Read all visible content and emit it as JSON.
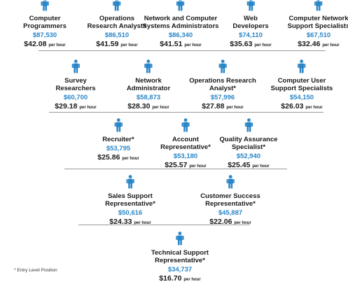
{
  "tiers": [
    {
      "jobs": [
        {
          "title": [
            "Computer",
            "Programmers"
          ],
          "salary": "$87,530",
          "hourly": "$42.08",
          "per": "per hour"
        },
        {
          "title": [
            "Operations",
            "Research Analysts"
          ],
          "salary": "$86,510",
          "hourly": "$41.59",
          "per": "per hour"
        },
        {
          "title": [
            "Network and Computer",
            "Systems Administrators"
          ],
          "salary": "$86,340",
          "hourly": "$41.51",
          "per": "per hour"
        },
        {
          "title": [
            "Web",
            "Developers"
          ],
          "salary": "$74,110",
          "hourly": "$35.63",
          "per": "per hour"
        },
        {
          "title": [
            "Computer Network",
            "Support Specialists"
          ],
          "salary": "$67,510",
          "hourly": "$32.46",
          "per": "per hour"
        }
      ]
    },
    {
      "jobs": [
        {
          "title": [
            "Survey",
            "Researchers"
          ],
          "salary": "$60,700",
          "hourly": "$29.18",
          "per": "per hour"
        },
        {
          "title": [
            "Network",
            "Administrator"
          ],
          "salary": "$58,873",
          "hourly": "$28.30",
          "per": "per hour"
        },
        {
          "title": [
            "Operations Research",
            "Analyst*"
          ],
          "salary": "$57,996",
          "hourly": "$27.88",
          "per": "per hour"
        },
        {
          "title": [
            "Computer User",
            "Support Specialists"
          ],
          "salary": "$54,150",
          "hourly": "$26.03",
          "per": "per hour"
        }
      ]
    },
    {
      "jobs": [
        {
          "title": [
            "Recruiter*"
          ],
          "salary": "$53,795",
          "hourly": "$25.86",
          "per": "per hour"
        },
        {
          "title": [
            "Account",
            "Representative*"
          ],
          "salary": "$53,180",
          "hourly": "$25.57",
          "per": "per hour"
        },
        {
          "title": [
            "Quality Assurance",
            "Specialist*"
          ],
          "salary": "$52,940",
          "hourly": "$25.45",
          "per": "per hour"
        }
      ]
    },
    {
      "jobs": [
        {
          "title": [
            "Sales Support",
            "Representative*"
          ],
          "salary": "$50,616",
          "hourly": "$24.33",
          "per": "per hour"
        },
        {
          "title": [
            "Customer Success",
            "Representative*"
          ],
          "salary": "$45,887",
          "hourly": "$22.06",
          "per": "per hour"
        }
      ]
    },
    {
      "jobs": [
        {
          "title": [
            "Technical Support",
            "Representative*"
          ],
          "salary": "$34,737",
          "hourly": "$16.70",
          "per": "per hour"
        }
      ]
    }
  ],
  "footnote": "* Entry Level Position",
  "colors": {
    "icon": "#2b86c8",
    "salary": "#2b86c8",
    "divider": "#9a9a9a"
  }
}
